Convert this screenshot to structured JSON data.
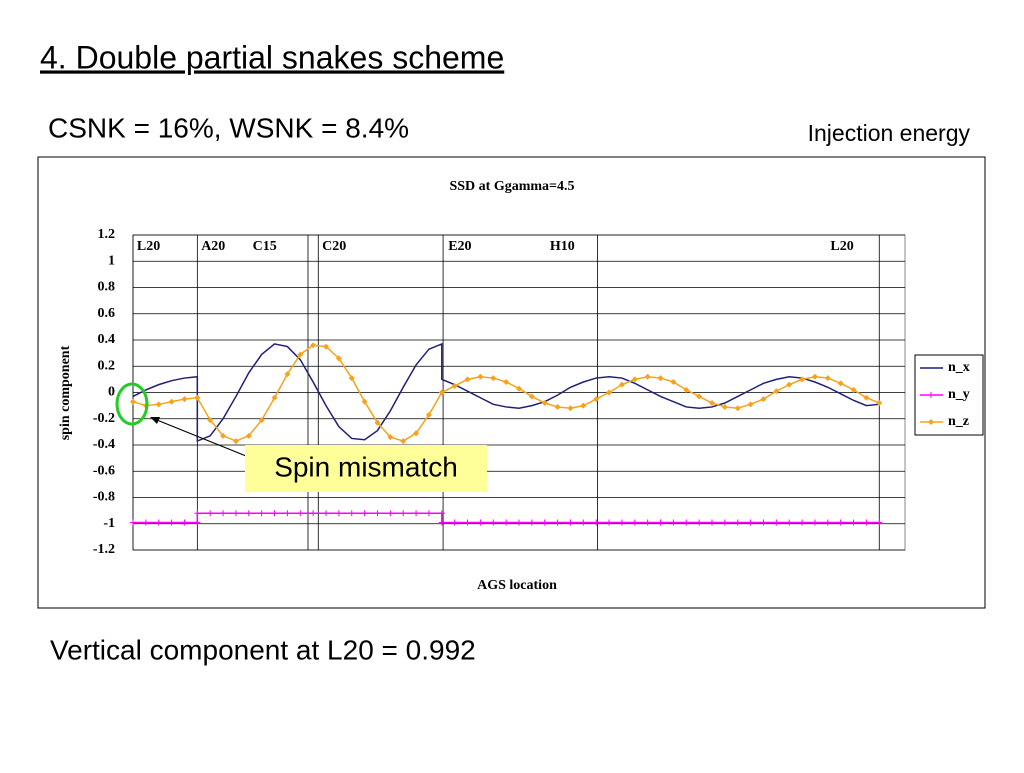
{
  "slide": {
    "title": "4. Double partial snakes scheme",
    "subtitle": "CSNK = 16%,  WSNK = 8.4%",
    "note": "Injection energy",
    "callout": "Spin mismatch",
    "footer": "Vertical component at L20 = 0.992"
  },
  "chart_data": {
    "type": "line",
    "title": "SSD at Ggamma=4.5",
    "x_label": "AGS location",
    "y_label": "spin component",
    "xlim": [
      0,
      60
    ],
    "ylim": [
      -1.2,
      1.2
    ],
    "yticks": [
      -1.2,
      -1,
      -0.8,
      -0.6,
      -0.4,
      -0.2,
      0,
      0.2,
      0.4,
      0.6,
      0.8,
      1,
      1.2
    ],
    "grid": true,
    "legend": "right",
    "section_lines": [
      0,
      5,
      13.6,
      14.4,
      24.1,
      36.1,
      58
    ],
    "section_labels": [
      {
        "label": "L20",
        "x": 0.3
      },
      {
        "label": "A20",
        "x": 5.3
      },
      {
        "label": "C15",
        "x": 9.3
      },
      {
        "label": "C20",
        "x": 14.7
      },
      {
        "label": "E20",
        "x": 24.5
      },
      {
        "label": "H10",
        "x": 32.4
      },
      {
        "label": "L20",
        "x": 54.2
      }
    ],
    "x": [
      0,
      1,
      2,
      3,
      4,
      5,
      5,
      6,
      7,
      8,
      9,
      10,
      11,
      12,
      13,
      14,
      15,
      16,
      17,
      18,
      19,
      20,
      21,
      22,
      23,
      24,
      24,
      25,
      26,
      27,
      28,
      29,
      30,
      31,
      32,
      33,
      34,
      35,
      36,
      37,
      38,
      39,
      40,
      41,
      42,
      43,
      44,
      45,
      46,
      47,
      48,
      49,
      50,
      51,
      52,
      53,
      54,
      55,
      56,
      57,
      58
    ],
    "series": [
      {
        "name": "n_x",
        "color": "#1f1f7a",
        "marker": "none",
        "values": [
          -0.03,
          0.02,
          0.06,
          0.09,
          0.11,
          0.12,
          -0.37,
          -0.33,
          -0.2,
          -0.03,
          0.15,
          0.29,
          0.37,
          0.35,
          0.25,
          0.08,
          -0.1,
          -0.26,
          -0.35,
          -0.36,
          -0.29,
          -0.14,
          0.04,
          0.21,
          0.33,
          0.37,
          0.1,
          0.06,
          0.01,
          -0.04,
          -0.09,
          -0.11,
          -0.12,
          -0.1,
          -0.07,
          -0.02,
          0.04,
          0.08,
          0.11,
          0.12,
          0.11,
          0.07,
          0.02,
          -0.03,
          -0.07,
          -0.11,
          -0.12,
          -0.11,
          -0.08,
          -0.03,
          0.02,
          0.07,
          0.1,
          0.12,
          0.11,
          0.08,
          0.04,
          -0.01,
          -0.06,
          -0.1,
          -0.09
        ]
      },
      {
        "name": "n_y",
        "color": "#ff00ff",
        "marker": "plus",
        "values": [
          -0.99,
          -0.99,
          -0.99,
          -0.99,
          -0.99,
          -0.99,
          -0.92,
          -0.92,
          -0.92,
          -0.92,
          -0.92,
          -0.92,
          -0.92,
          -0.92,
          -0.92,
          -0.92,
          -0.92,
          -0.92,
          -0.92,
          -0.92,
          -0.92,
          -0.92,
          -0.92,
          -0.92,
          -0.92,
          -0.92,
          -0.99,
          -0.99,
          -0.99,
          -0.99,
          -0.99,
          -0.99,
          -0.99,
          -0.99,
          -0.99,
          -0.99,
          -0.99,
          -0.99,
          -0.99,
          -0.99,
          -0.99,
          -0.99,
          -0.99,
          -0.99,
          -0.99,
          -0.99,
          -0.99,
          -0.99,
          -0.99,
          -0.99,
          -0.99,
          -0.99,
          -0.99,
          -0.99,
          -0.99,
          -0.99,
          -0.99,
          -0.99,
          -0.99,
          -0.99,
          -0.99
        ]
      },
      {
        "name": "n_z",
        "color": "#f7a21b",
        "marker": "diamond",
        "values": [
          -0.07,
          -0.1,
          -0.09,
          -0.07,
          -0.05,
          -0.04,
          -0.04,
          -0.21,
          -0.33,
          -0.37,
          -0.33,
          -0.21,
          -0.04,
          0.14,
          0.29,
          0.36,
          0.35,
          0.26,
          0.11,
          -0.07,
          -0.23,
          -0.34,
          -0.37,
          -0.31,
          -0.17,
          0,
          0,
          0.05,
          0.1,
          0.12,
          0.11,
          0.08,
          0.03,
          -0.03,
          -0.08,
          -0.11,
          -0.12,
          -0.1,
          -0.05,
          0,
          0.06,
          0.1,
          0.12,
          0.11,
          0.08,
          0.02,
          -0.03,
          -0.08,
          -0.11,
          -0.12,
          -0.09,
          -0.05,
          0.01,
          0.06,
          0.1,
          0.12,
          0.11,
          0.07,
          0.02,
          -0.04,
          -0.08
        ]
      }
    ]
  }
}
